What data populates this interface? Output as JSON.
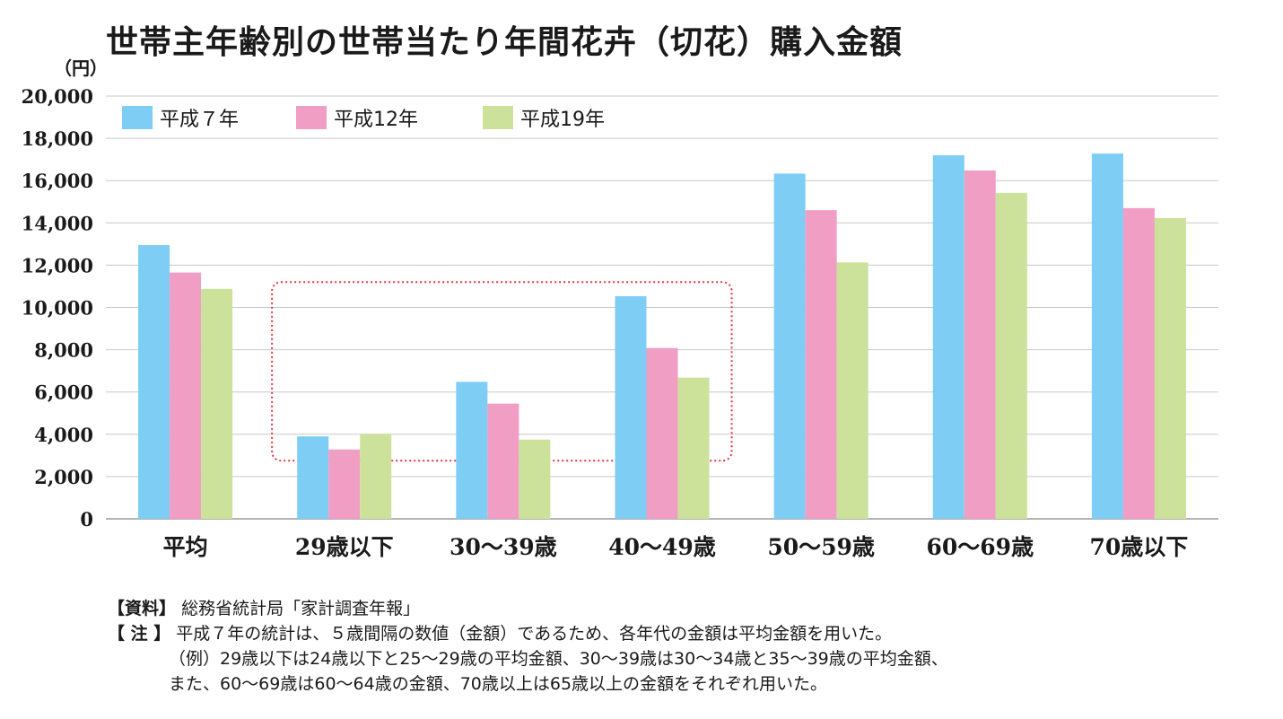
{
  "chart_data": {
    "type": "bar",
    "title": "世帯主年齢別の世帯当たり年間花卉（切花）購入金額",
    "y_unit": "（円）",
    "categories": [
      "平均",
      "29歳以下",
      "30〜39歳",
      "40〜49歳",
      "50〜59歳",
      "60〜69歳",
      "70歳以下"
    ],
    "series": [
      {
        "name": "平成７年",
        "color": "#7dcdf4",
        "values": [
          12950,
          3900,
          6480,
          10530,
          16330,
          17200,
          17280
        ]
      },
      {
        "name": "平成12年",
        "color": "#f19ec5",
        "values": [
          11650,
          3280,
          5450,
          8080,
          14600,
          16480,
          14700
        ]
      },
      {
        "name": "平成19年",
        "color": "#cce29b",
        "values": [
          10880,
          4020,
          3750,
          6680,
          12130,
          15420,
          14230
        ]
      }
    ],
    "ylim": [
      0,
      20000
    ],
    "yticks": [
      "0",
      "2,000",
      "4,000",
      "6,000",
      "8,000",
      "10,000",
      "12,000",
      "14,000",
      "16,000",
      "18,000",
      "20,000"
    ],
    "grid": true,
    "legend_position": "top-left",
    "highlight_color": "#e8343f"
  },
  "notes": {
    "source_label": "【資料】",
    "source_text": "総務省統計局「家計調査年報」",
    "note_label": "【 注 】",
    "note_line1": "平成７年の統計は、５歳間隔の数値（金額）であるため、各年代の金額は平均金額を用いた。",
    "note_line2": "（例）29歳以下は24歳以下と25〜29歳の平均金額、30〜39歳は30〜34歳と35〜39歳の平均金額、",
    "note_line3": "また、60〜69歳は60〜64歳の金額、70歳以上は65歳以上の金額をそれぞれ用いた。"
  }
}
